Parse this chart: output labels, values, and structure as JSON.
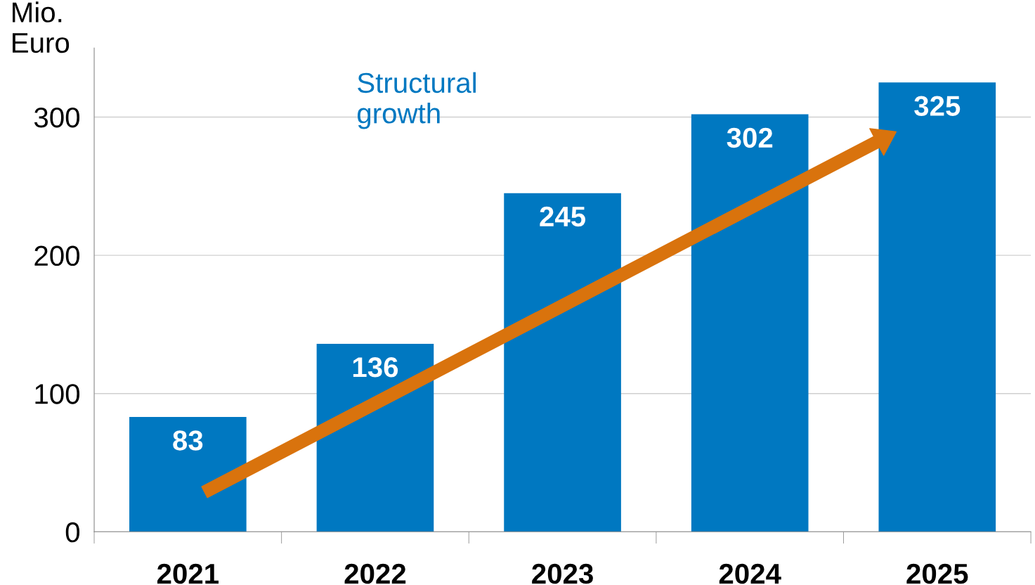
{
  "chart_data": {
    "type": "bar",
    "ylabel": "Mio.\nEuro",
    "categories": [
      "2021",
      "2022",
      "2023",
      "2024",
      "2025"
    ],
    "values": [
      83,
      136,
      245,
      302,
      325
    ],
    "color": "#0078c1",
    "ylim": [
      0,
      350
    ],
    "yticks": [
      0,
      100,
      200,
      300
    ],
    "grid": "y",
    "data_labels": true,
    "annotations": [
      "Structural growth"
    ]
  }
}
